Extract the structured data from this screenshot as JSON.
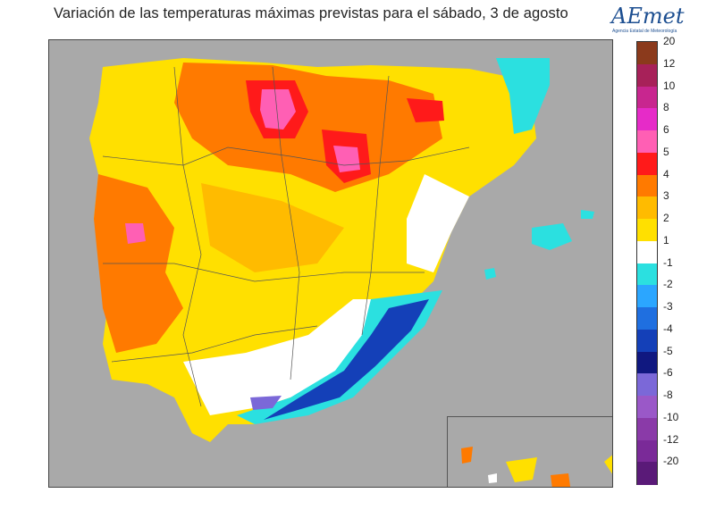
{
  "title": "Variación de las temperaturas máximas previstas para el sábado, 3 de agosto",
  "logo": {
    "word": "AEmet",
    "subtitle": "Agencia Estatal de Meteorología",
    "color": "#1d4f91"
  },
  "legend": {
    "levels": [
      {
        "label": "20",
        "color": "#8b3a1c"
      },
      {
        "label": "12",
        "color": "#a72159"
      },
      {
        "label": "10",
        "color": "#c8268f"
      },
      {
        "label": "8",
        "color": "#e62bc8"
      },
      {
        "label": "6",
        "color": "#ff5fb4"
      },
      {
        "label": "5",
        "color": "#ff1a1a"
      },
      {
        "label": "4",
        "color": "#ff7a00"
      },
      {
        "label": "3",
        "color": "#ffbb00"
      },
      {
        "label": "2",
        "color": "#ffe000"
      },
      {
        "label": "1",
        "color": "#ffffff"
      },
      {
        "label": "-1",
        "color": "#2be0e0"
      },
      {
        "label": "-2",
        "color": "#2ba6ff"
      },
      {
        "label": "-3",
        "color": "#1f6fe0"
      },
      {
        "label": "-4",
        "color": "#1440b8"
      },
      {
        "label": "-5",
        "color": "#101880"
      },
      {
        "label": "-6",
        "color": "#7b68d8"
      },
      {
        "label": "-8",
        "color": "#9a58c8"
      },
      {
        "label": "-10",
        "color": "#8a3aa8"
      },
      {
        "label": "-12",
        "color": "#7a2a98"
      },
      {
        "label": "-20",
        "color": "#5a1a78"
      }
    ]
  },
  "colors": {
    "sea": "#a9a9a9",
    "neutral": "#ffffff",
    "plus1": "#ffe000",
    "plus2": "#ffbb00",
    "plus3": "#ff7a00",
    "plus4": "#ff1a1a",
    "plus5": "#ff5fb4",
    "minus1": "#2be0e0",
    "minus2": "#2ba6ff",
    "minus3": "#1440b8",
    "minus4": "#7b68d8",
    "borders": "#555555"
  }
}
